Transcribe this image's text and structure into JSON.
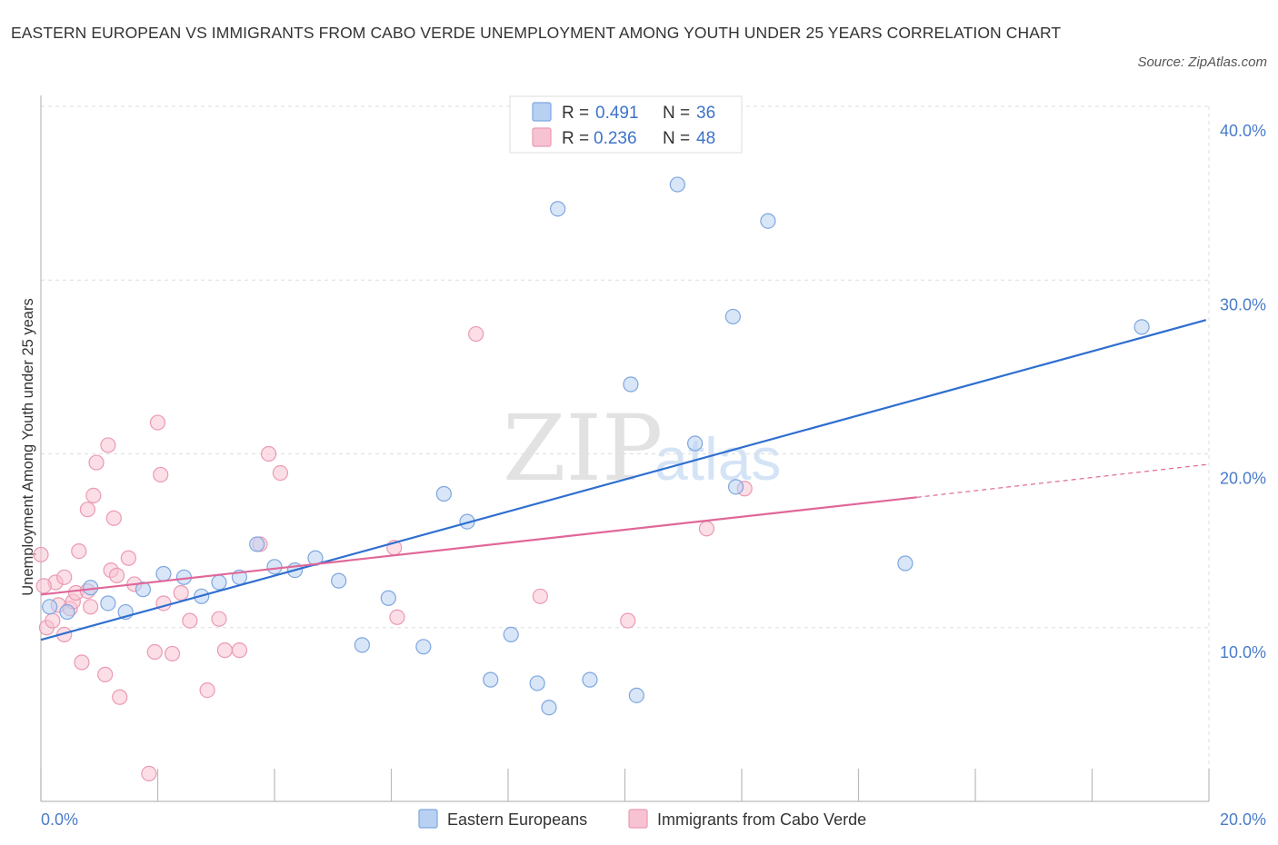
{
  "title": "EASTERN EUROPEAN VS IMMIGRANTS FROM CABO VERDE UNEMPLOYMENT AMONG YOUTH UNDER 25 YEARS CORRELATION CHART",
  "source": "Source: ZipAtlas.com",
  "watermark": {
    "zip": "ZIP",
    "atlas": "atlas"
  },
  "colors": {
    "blue_fill": "#b8d1f3",
    "blue_stroke": "#7ea6de",
    "blue_line": "#2f6fcf",
    "pink_fill": "#f7c3d2",
    "pink_stroke": "#eb9ab3",
    "pink_line": "#e0679a",
    "grid": "#dddddd",
    "axis": "#bbbbbb",
    "tick_text": "#4a7cc9"
  },
  "legend": {
    "rows": [
      {
        "r_label": "R =",
        "r_value": "0.491",
        "n_label": "N =",
        "n_value": "36",
        "series": "blue"
      },
      {
        "r_label": "R =",
        "r_value": "0.236",
        "n_label": "N =",
        "n_value": "48",
        "series": "pink"
      }
    ]
  },
  "chart_data": {
    "type": "scatter",
    "title": "EASTERN EUROPEAN VS IMMIGRANTS FROM CABO VERDE UNEMPLOYMENT AMONG YOUTH UNDER 25 YEARS CORRELATION CHART",
    "xlabel": "",
    "ylabel": "Unemployment Among Youth under 25 years",
    "xlim": [
      0,
      20
    ],
    "ylim": [
      0,
      40
    ],
    "x_tick_labels": [
      "0.0%",
      "20.0%"
    ],
    "y_ticks": [
      10,
      20,
      30,
      40
    ],
    "y_tick_labels": [
      "10.0%",
      "20.0%",
      "30.0%",
      "40.0%"
    ],
    "grid": true,
    "legend_position": "top-center",
    "series": [
      {
        "name": "Eastern Europeans",
        "color": "blue",
        "R": 0.491,
        "N": 36,
        "trend": {
          "x": [
            0.0,
            19.95
          ],
          "y": [
            9.3,
            27.7
          ]
        },
        "points": [
          [
            0.15,
            11.2
          ],
          [
            0.45,
            10.9
          ],
          [
            0.85,
            12.3
          ],
          [
            1.15,
            11.4
          ],
          [
            1.45,
            10.9
          ],
          [
            1.75,
            12.2
          ],
          [
            2.1,
            13.1
          ],
          [
            2.45,
            12.9
          ],
          [
            2.75,
            11.8
          ],
          [
            3.05,
            12.6
          ],
          [
            3.4,
            12.9
          ],
          [
            3.7,
            14.8
          ],
          [
            4.0,
            13.5
          ],
          [
            4.35,
            13.3
          ],
          [
            4.7,
            14.0
          ],
          [
            5.1,
            12.7
          ],
          [
            5.5,
            9.0
          ],
          [
            5.95,
            11.7
          ],
          [
            6.55,
            8.9
          ],
          [
            6.9,
            17.7
          ],
          [
            7.3,
            16.1
          ],
          [
            7.7,
            7.0
          ],
          [
            8.05,
            9.6
          ],
          [
            8.5,
            6.8
          ],
          [
            8.7,
            5.4
          ],
          [
            8.85,
            34.1
          ],
          [
            9.4,
            7.0
          ],
          [
            10.1,
            24.0
          ],
          [
            10.2,
            6.1
          ],
          [
            10.9,
            35.5
          ],
          [
            11.2,
            20.6
          ],
          [
            11.85,
            27.9
          ],
          [
            11.9,
            18.1
          ],
          [
            12.45,
            33.4
          ],
          [
            14.8,
            13.7
          ],
          [
            18.85,
            27.3
          ]
        ]
      },
      {
        "name": "Immigrants from Cabo Verde",
        "color": "pink",
        "R": 0.236,
        "N": 48,
        "trend": {
          "x": [
            0.0,
            15.0
          ],
          "y": [
            11.9,
            17.5
          ]
        },
        "trend_dashed": {
          "x": [
            15.0,
            20.0
          ],
          "y": [
            17.5,
            19.4
          ]
        },
        "points": [
          [
            0.0,
            14.2
          ],
          [
            0.1,
            10.0
          ],
          [
            0.2,
            10.4
          ],
          [
            0.25,
            12.6
          ],
          [
            0.3,
            11.3
          ],
          [
            0.4,
            12.9
          ],
          [
            0.4,
            9.6
          ],
          [
            0.5,
            11.1
          ],
          [
            0.55,
            11.5
          ],
          [
            0.6,
            12.0
          ],
          [
            0.65,
            14.4
          ],
          [
            0.7,
            8.0
          ],
          [
            0.8,
            12.1
          ],
          [
            0.8,
            16.8
          ],
          [
            0.85,
            11.2
          ],
          [
            0.9,
            17.6
          ],
          [
            0.95,
            19.5
          ],
          [
            1.1,
            7.3
          ],
          [
            1.15,
            20.5
          ],
          [
            1.2,
            13.3
          ],
          [
            1.25,
            16.3
          ],
          [
            1.3,
            13.0
          ],
          [
            1.35,
            6.0
          ],
          [
            1.5,
            14.0
          ],
          [
            1.6,
            12.5
          ],
          [
            1.85,
            1.6
          ],
          [
            1.95,
            8.6
          ],
          [
            2.0,
            21.8
          ],
          [
            2.05,
            18.8
          ],
          [
            2.1,
            11.4
          ],
          [
            2.25,
            8.5
          ],
          [
            2.4,
            12.0
          ],
          [
            2.55,
            10.4
          ],
          [
            2.85,
            6.4
          ],
          [
            3.05,
            10.5
          ],
          [
            3.15,
            8.7
          ],
          [
            3.4,
            8.7
          ],
          [
            3.75,
            14.8
          ],
          [
            3.9,
            20.0
          ],
          [
            4.1,
            18.9
          ],
          [
            6.05,
            14.6
          ],
          [
            6.1,
            10.6
          ],
          [
            7.45,
            26.9
          ],
          [
            8.55,
            11.8
          ],
          [
            10.05,
            10.4
          ],
          [
            11.4,
            15.7
          ],
          [
            12.05,
            18.0
          ],
          [
            0.05,
            12.4
          ]
        ]
      }
    ]
  }
}
